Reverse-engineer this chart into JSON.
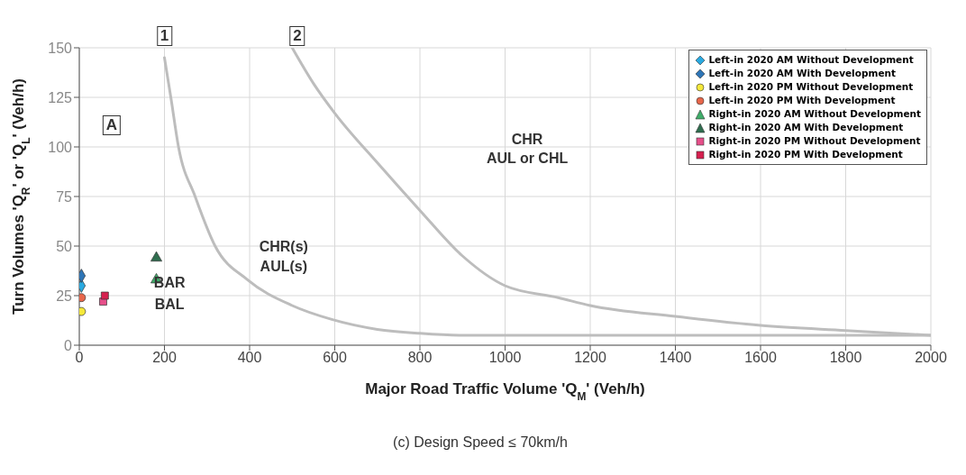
{
  "chart_data": {
    "type": "scatter",
    "xlabel": "Major Road Traffic Volume 'Q$_{M}$' (Veh/h)",
    "ylabel": "Turn Volumes 'Q$_{R}$' or 'Q$_{L}$' (Veh/h)",
    "xlim": [
      0,
      2000
    ],
    "xticks": [
      0,
      200,
      400,
      600,
      800,
      1000,
      1200,
      1400,
      1600,
      1800,
      2000
    ],
    "ylim": [
      0,
      150
    ],
    "yticks": [
      0,
      25,
      50,
      75,
      100,
      125,
      150
    ],
    "grid": true,
    "legend": "top right",
    "series": [
      {
        "type": "line",
        "color": "#bdbdbd",
        "marker": "none",
        "line_style": "solid",
        "x": [
          200,
          215,
          233,
          272,
          319,
          395,
          500,
          593,
          700,
          800,
          900,
          1000,
          1500,
          2000
        ],
        "values": [
          145,
          125,
          100,
          75,
          50,
          33,
          20,
          13,
          8,
          6,
          5,
          5,
          5,
          5
        ]
      },
      {
        "type": "line",
        "color": "#bdbdbd",
        "marker": "none",
        "line_style": "solid",
        "x": [
          500,
          550,
          600,
          700,
          800,
          900,
          1000,
          1125,
          1200,
          1400,
          1600,
          1800,
          2000
        ],
        "values": [
          150,
          132,
          117,
          92,
          68,
          45,
          30,
          24,
          20,
          14.5,
          10,
          7.4,
          5
        ]
      },
      {
        "name": "Left-in 2020 AM Without Development",
        "color": "#29a9e0",
        "marker": "diamond",
        "x": [
          5
        ],
        "values": [
          30
        ]
      },
      {
        "name": "Left-in 2020 AM With Development",
        "color": "#2e75b6",
        "marker": "diamond",
        "x": [
          5
        ],
        "values": [
          35
        ]
      },
      {
        "name": "Left-in 2020 PM Without Development",
        "color": "#f5e83a",
        "marker": "circle",
        "x": [
          5
        ],
        "values": [
          17
        ]
      },
      {
        "name": "Left-in 2020 PM With Development",
        "color": "#e8664a",
        "marker": "circle",
        "x": [
          5
        ],
        "values": [
          24
        ]
      },
      {
        "name": "Right-in 2020 AM Without Development",
        "color": "#3fae6a",
        "marker": "triangle",
        "x": [
          181
        ],
        "values": [
          33
        ]
      },
      {
        "name": "Right-in 2020 AM With Development",
        "color": "#2f6e4f",
        "marker": "triangle",
        "x": [
          181
        ],
        "values": [
          44
        ]
      },
      {
        "name": "Right-in 2020 PM Without Development",
        "color": "#e64f8a",
        "marker": "square",
        "x": [
          56
        ],
        "values": [
          22
        ]
      },
      {
        "name": "Right-in 2020 PM With Development",
        "color": "#d6204f",
        "marker": "square",
        "x": [
          60
        ],
        "values": [
          25
        ]
      }
    ],
    "annotations": [
      "A",
      "1",
      "2",
      "CHR",
      "AUL or CHL",
      "CHR(s)",
      "AUL(s)",
      "BAR",
      "BAL",
      "(c) Design Speed ≤ 70km/h"
    ]
  }
}
